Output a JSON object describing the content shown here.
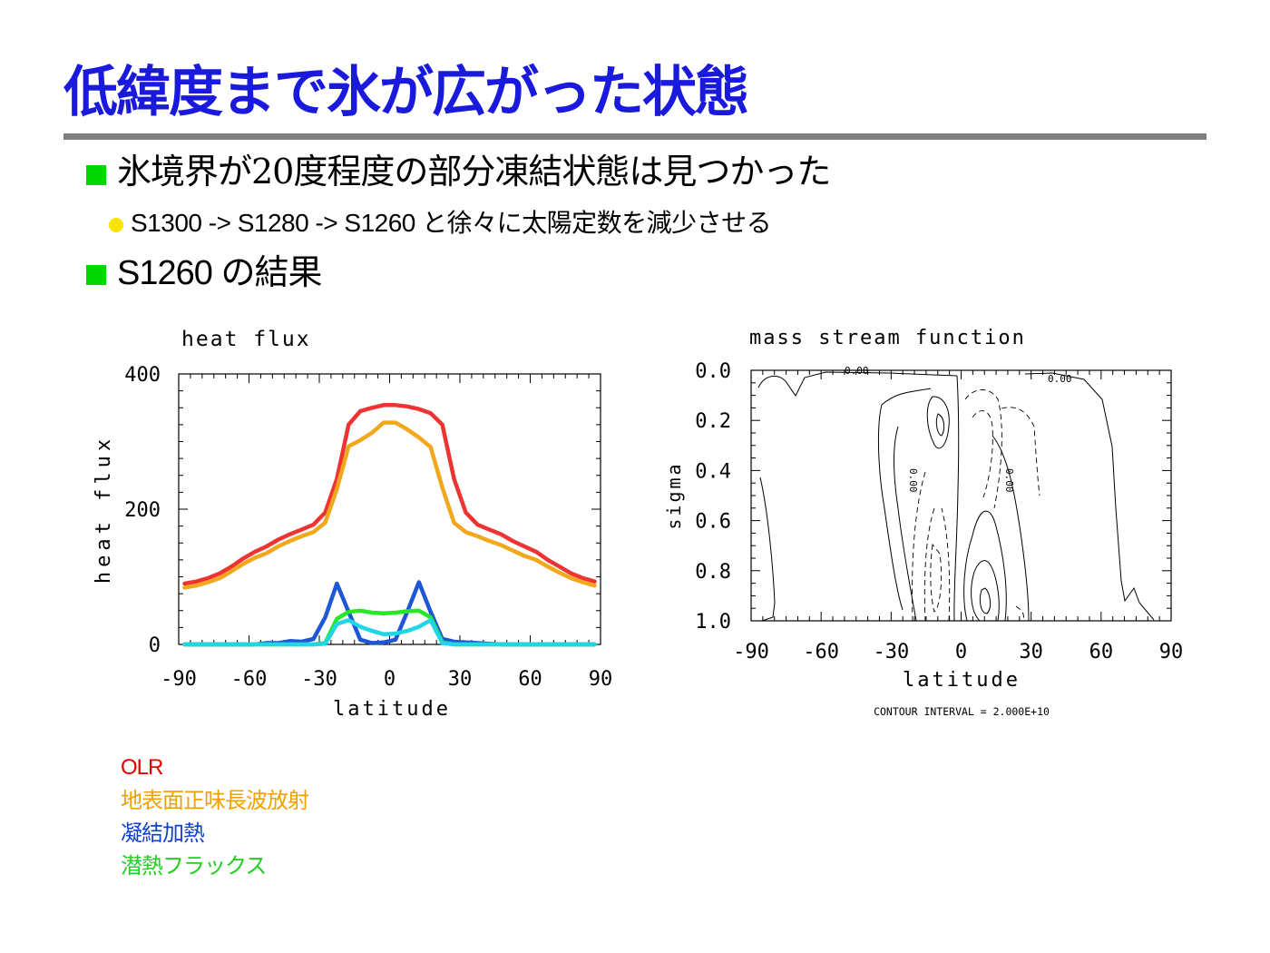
{
  "slide": {
    "title": "低緯度まで氷が広がった状態",
    "bullets": [
      {
        "text": "氷境界が20度程度の部分凍結状態は見つかった"
      },
      {
        "text": "S1300 -> S1280 -> S1260 と徐々に太陽定数を減少させる"
      },
      {
        "text": "S1260 の結果"
      }
    ],
    "legend": [
      {
        "label": "OLR",
        "color": "#e00000"
      },
      {
        "label": "地表面正味長波放射",
        "color": "#f0a000"
      },
      {
        "label": "凝結加熱",
        "color": "#1040d0"
      },
      {
        "label": "潜熱フラックス",
        "color": "#20d020"
      }
    ],
    "colors": {
      "title": "#1a1adc",
      "rule": "#7f7f7f",
      "square_bullet": "#00d800",
      "dot_bullet": "#f5e400"
    }
  },
  "chart_data": [
    {
      "type": "line",
      "title": "heat flux",
      "xlabel": "latitude",
      "ylabel": "heat flux",
      "xlim": [
        -90,
        90
      ],
      "ylim": [
        0,
        400
      ],
      "xticks": [
        "-90",
        "-60",
        "-30",
        "0",
        "30",
        "60",
        "90"
      ],
      "yticks": [
        "0",
        "200",
        "400"
      ],
      "x": [
        -87.5,
        -82.5,
        -77.5,
        -72.5,
        -67.5,
        -62.5,
        -57.5,
        -52.5,
        -47.5,
        -42.5,
        -37.5,
        -32.5,
        -27.5,
        -22.5,
        -17.5,
        -12.5,
        -7.5,
        -2.5,
        2.5,
        7.5,
        12.5,
        17.5,
        22.5,
        27.5,
        32.5,
        37.5,
        42.5,
        47.5,
        52.5,
        57.5,
        62.5,
        67.5,
        72.5,
        77.5,
        82.5,
        87.5
      ],
      "series": [
        {
          "color": "#ee3333",
          "values": [
            90,
            93,
            98,
            105,
            115,
            127,
            137,
            145,
            155,
            163,
            170,
            177,
            195,
            245,
            325,
            345,
            350,
            354,
            354,
            352,
            348,
            342,
            325,
            245,
            195,
            177,
            170,
            163,
            153,
            145,
            137,
            125,
            115,
            105,
            98,
            93
          ]
        },
        {
          "color": "#f2a81c",
          "values": [
            84,
            87,
            92,
            98,
            108,
            119,
            128,
            135,
            145,
            153,
            160,
            166,
            180,
            230,
            293,
            302,
            313,
            328,
            328,
            318,
            306,
            292,
            232,
            180,
            166,
            160,
            153,
            147,
            139,
            131,
            125,
            115,
            106,
            98,
            92,
            87
          ]
        },
        {
          "color": "#1f56d8",
          "values": [
            0,
            0,
            0,
            0,
            0,
            0,
            0,
            2,
            2,
            5,
            4,
            8,
            40,
            90,
            48,
            7,
            2,
            3,
            7,
            48,
            92,
            48,
            8,
            4,
            3,
            2,
            1,
            0,
            0,
            0,
            0,
            0,
            0,
            0,
            0,
            0
          ]
        },
        {
          "color": "#27e827",
          "values": [
            0,
            0,
            0,
            0,
            0,
            0,
            0,
            0,
            0,
            0,
            0,
            0,
            2,
            38,
            48,
            50,
            47,
            46,
            47,
            49,
            50,
            40,
            3,
            0,
            0,
            0,
            0,
            0,
            0,
            0,
            0,
            0,
            0,
            0,
            0,
            0
          ]
        },
        {
          "color": "#1fd6e6",
          "values": [
            0,
            0,
            0,
            0,
            0,
            0,
            0,
            0,
            0,
            0,
            0,
            0,
            1,
            30,
            36,
            26,
            20,
            15,
            16,
            20,
            26,
            36,
            2,
            0,
            0,
            0,
            0,
            0,
            0,
            0,
            0,
            0,
            0,
            0,
            0,
            0
          ]
        }
      ]
    },
    {
      "type": "contour",
      "title": "mass stream function",
      "xlabel": "latitude",
      "ylabel": "sigma",
      "xlim": [
        -90,
        90
      ],
      "ylim": [
        0.0,
        1.0
      ],
      "xticks": [
        "-90",
        "-60",
        "-30",
        "0",
        "30",
        "60",
        "90"
      ],
      "yticks": [
        "0.0",
        "0.2",
        "0.4",
        "0.6",
        "0.8",
        "1.0"
      ],
      "contour_labels": [
        "0.00",
        "0.00",
        "0.00",
        "0.00"
      ],
      "note": "CONTOUR INTERVAL = 2.000E+10"
    }
  ]
}
